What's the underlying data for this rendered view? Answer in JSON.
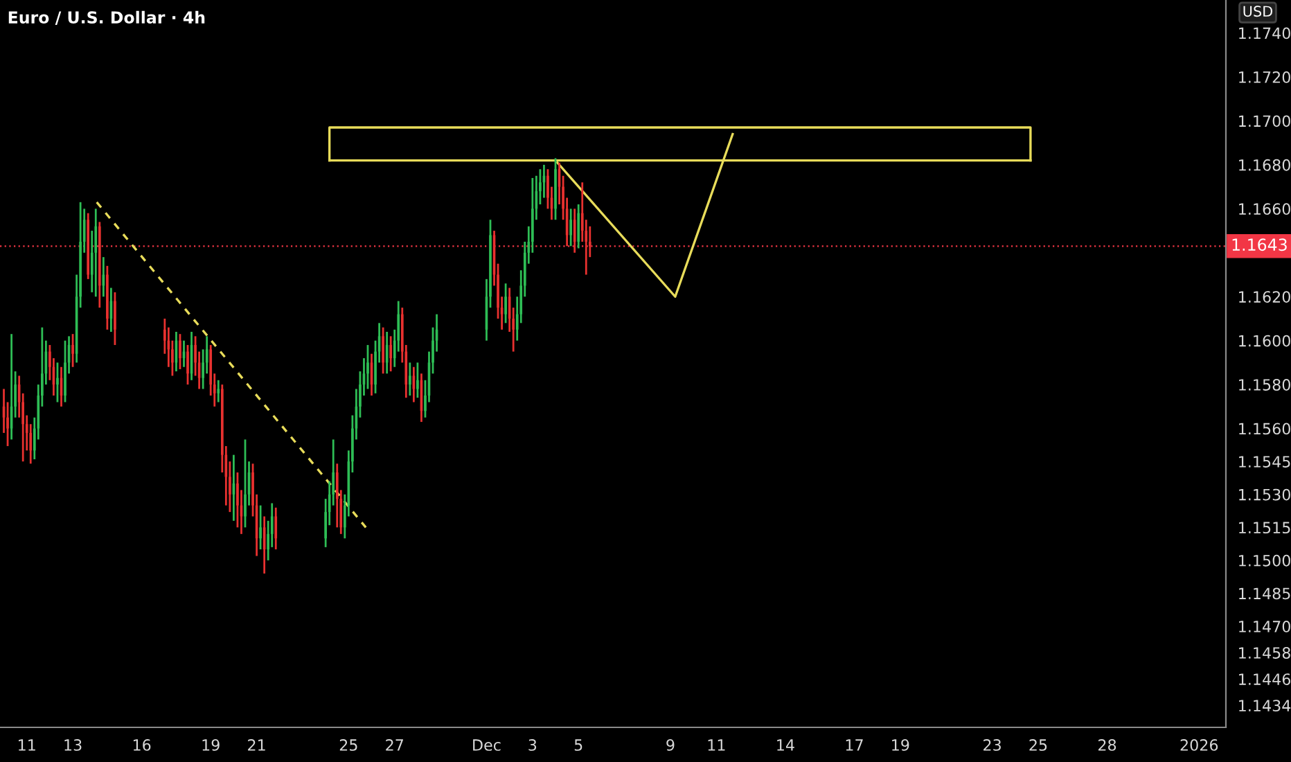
{
  "chart_data": {
    "type": "candlestick",
    "title": "Euro / U.S. Dollar · 4h",
    "ylabel": "USD",
    "x": [
      "2025-11-10T00:00",
      "2025-11-10T04:00",
      "2025-11-10T08:00",
      "2025-11-10T12:00",
      "2025-11-10T16:00",
      "2025-11-10T20:00",
      "2025-11-11T00:00",
      "2025-11-11T04:00",
      "2025-11-11T08:00",
      "2025-11-11T12:00",
      "2025-11-11T16:00",
      "2025-11-11T20:00",
      "2025-11-12T00:00",
      "2025-11-12T04:00",
      "2025-11-12T08:00",
      "2025-11-12T12:00",
      "2025-11-12T16:00",
      "2025-11-12T20:00",
      "2025-11-13T00:00",
      "2025-11-13T04:00",
      "2025-11-13T08:00",
      "2025-11-13T12:00",
      "2025-11-13T16:00",
      "2025-11-13T20:00",
      "2025-11-14T00:00",
      "2025-11-14T04:00",
      "2025-11-14T08:00",
      "2025-11-14T12:00",
      "2025-11-14T16:00",
      "2025-11-14T20:00",
      "2025-11-17T00:00",
      "2025-11-17T04:00",
      "2025-11-17T08:00",
      "2025-11-17T12:00",
      "2025-11-17T16:00",
      "2025-11-17T20:00",
      "2025-11-18T00:00",
      "2025-11-18T04:00",
      "2025-11-18T08:00",
      "2025-11-18T12:00",
      "2025-11-18T16:00",
      "2025-11-18T20:00",
      "2025-11-19T00:00",
      "2025-11-19T04:00",
      "2025-11-19T08:00",
      "2025-11-19T12:00",
      "2025-11-19T16:00",
      "2025-11-19T20:00",
      "2025-11-20T00:00",
      "2025-11-20T04:00",
      "2025-11-20T08:00",
      "2025-11-20T12:00",
      "2025-11-20T16:00",
      "2025-11-20T20:00",
      "2025-11-21T00:00",
      "2025-11-21T04:00",
      "2025-11-21T08:00",
      "2025-11-21T12:00",
      "2025-11-21T16:00",
      "2025-11-21T20:00",
      "2025-11-24T00:00",
      "2025-11-24T04:00",
      "2025-11-24T08:00",
      "2025-11-24T12:00",
      "2025-11-24T16:00",
      "2025-11-24T20:00",
      "2025-11-25T00:00",
      "2025-11-25T04:00",
      "2025-11-25T08:00",
      "2025-11-25T12:00",
      "2025-11-25T16:00",
      "2025-11-25T20:00",
      "2025-11-26T00:00",
      "2025-11-26T04:00",
      "2025-11-26T08:00",
      "2025-11-26T12:00",
      "2025-11-26T16:00",
      "2025-11-26T20:00",
      "2025-11-27T00:00",
      "2025-11-27T04:00",
      "2025-11-27T08:00",
      "2025-11-27T12:00",
      "2025-11-27T16:00",
      "2025-11-27T20:00",
      "2025-11-28T00:00",
      "2025-11-28T04:00",
      "2025-11-28T08:00",
      "2025-11-28T12:00",
      "2025-11-28T16:00",
      "2025-11-28T20:00",
      "2025-12-01T00:00",
      "2025-12-01T04:00",
      "2025-12-01T08:00",
      "2025-12-01T12:00",
      "2025-12-01T16:00",
      "2025-12-01T20:00",
      "2025-12-02T00:00",
      "2025-12-02T04:00",
      "2025-12-02T08:00",
      "2025-12-02T12:00",
      "2025-12-02T16:00",
      "2025-12-02T20:00",
      "2025-12-03T00:00",
      "2025-12-03T04:00",
      "2025-12-03T08:00",
      "2025-12-03T12:00",
      "2025-12-03T16:00",
      "2025-12-03T20:00",
      "2025-12-04T00:00",
      "2025-12-04T04:00",
      "2025-12-04T08:00",
      "2025-12-04T12:00",
      "2025-12-04T16:00",
      "2025-12-04T20:00",
      "2025-12-05T00:00",
      "2025-12-05T04:00",
      "2025-12-05T08:00",
      "2025-12-05T12:00"
    ],
    "ohlc": [
      [
        1.157,
        1.1578,
        1.1558,
        1.1565
      ],
      [
        1.1565,
        1.1572,
        1.1552,
        1.156
      ],
      [
        1.156,
        1.1603,
        1.1555,
        1.157
      ],
      [
        1.157,
        1.1586,
        1.1565,
        1.158
      ],
      [
        1.158,
        1.1584,
        1.1565,
        1.1572
      ],
      [
        1.1572,
        1.1576,
        1.1545,
        1.1562
      ],
      [
        1.1562,
        1.1566,
        1.155,
        1.1558
      ],
      [
        1.1558,
        1.1562,
        1.1544,
        1.155
      ],
      [
        1.155,
        1.1565,
        1.1546,
        1.156
      ],
      [
        1.156,
        1.158,
        1.1555,
        1.1575
      ],
      [
        1.1575,
        1.1606,
        1.157,
        1.1585
      ],
      [
        1.1585,
        1.16,
        1.158,
        1.1595
      ],
      [
        1.1595,
        1.1598,
        1.1582,
        1.1588
      ],
      [
        1.1588,
        1.1592,
        1.1575,
        1.158
      ],
      [
        1.158,
        1.159,
        1.1572,
        1.1583
      ],
      [
        1.1583,
        1.1588,
        1.157,
        1.1575
      ],
      [
        1.1575,
        1.16,
        1.1572,
        1.159
      ],
      [
        1.159,
        1.1602,
        1.1585,
        1.1598
      ],
      [
        1.1598,
        1.1603,
        1.1588,
        1.1594
      ],
      [
        1.1594,
        1.163,
        1.159,
        1.162
      ],
      [
        1.162,
        1.1663,
        1.1615,
        1.1645
      ],
      [
        1.1645,
        1.166,
        1.164,
        1.1655
      ],
      [
        1.1655,
        1.1658,
        1.1628,
        1.163
      ],
      [
        1.163,
        1.165,
        1.1622,
        1.164
      ],
      [
        1.164,
        1.166,
        1.162,
        1.1652
      ],
      [
        1.1652,
        1.1654,
        1.1615,
        1.1625
      ],
      [
        1.1625,
        1.1638,
        1.162,
        1.163
      ],
      [
        1.163,
        1.1634,
        1.1605,
        1.161
      ],
      [
        1.161,
        1.1624,
        1.1604,
        1.1618
      ],
      [
        1.1618,
        1.1622,
        1.1598,
        1.1605
      ],
      [
        1.1605,
        1.161,
        1.1594,
        1.16
      ],
      [
        1.16,
        1.1606,
        1.1588,
        1.1596
      ],
      [
        1.1596,
        1.16,
        1.1584,
        1.159
      ],
      [
        1.159,
        1.1604,
        1.1586,
        1.16
      ],
      [
        1.16,
        1.1603,
        1.1587,
        1.1592
      ],
      [
        1.1592,
        1.16,
        1.1588,
        1.1595
      ],
      [
        1.1595,
        1.1598,
        1.158,
        1.1585
      ],
      [
        1.1585,
        1.1604,
        1.1582,
        1.1598
      ],
      [
        1.1598,
        1.1602,
        1.1584,
        1.159
      ],
      [
        1.159,
        1.1595,
        1.1578,
        1.1583
      ],
      [
        1.1583,
        1.1596,
        1.1578,
        1.159
      ],
      [
        1.159,
        1.1602,
        1.1585,
        1.1596
      ],
      [
        1.1596,
        1.1598,
        1.1575,
        1.158
      ],
      [
        1.158,
        1.1585,
        1.157,
        1.1576
      ],
      [
        1.1576,
        1.1582,
        1.1572,
        1.1578
      ],
      [
        1.1578,
        1.158,
        1.154,
        1.1548
      ],
      [
        1.1548,
        1.1552,
        1.1525,
        1.1538
      ],
      [
        1.1538,
        1.1545,
        1.1522,
        1.153
      ],
      [
        1.153,
        1.1548,
        1.1518,
        1.1535
      ],
      [
        1.1535,
        1.154,
        1.1515,
        1.1525
      ],
      [
        1.1525,
        1.1532,
        1.1512,
        1.152
      ],
      [
        1.152,
        1.1555,
        1.1515,
        1.153
      ],
      [
        1.153,
        1.1545,
        1.1525,
        1.154
      ],
      [
        1.154,
        1.1544,
        1.152,
        1.1525
      ],
      [
        1.1525,
        1.153,
        1.1502,
        1.151
      ],
      [
        1.151,
        1.1525,
        1.1505,
        1.1515
      ],
      [
        1.1515,
        1.152,
        1.1494,
        1.1505
      ],
      [
        1.1505,
        1.1518,
        1.15,
        1.1512
      ],
      [
        1.1512,
        1.1526,
        1.1506,
        1.152
      ],
      [
        1.152,
        1.1524,
        1.1505,
        1.151
      ],
      [
        1.151,
        1.1528,
        1.1506,
        1.1522
      ],
      [
        1.1522,
        1.1536,
        1.1516,
        1.153
      ],
      [
        1.153,
        1.1555,
        1.1525,
        1.154
      ],
      [
        1.154,
        1.1544,
        1.1515,
        1.1528
      ],
      [
        1.1528,
        1.1532,
        1.1512,
        1.1515
      ],
      [
        1.1515,
        1.153,
        1.151,
        1.1525
      ],
      [
        1.1525,
        1.155,
        1.152,
        1.1545
      ],
      [
        1.1545,
        1.1566,
        1.154,
        1.156
      ],
      [
        1.156,
        1.1578,
        1.1555,
        1.157
      ],
      [
        1.157,
        1.1586,
        1.1565,
        1.158
      ],
      [
        1.158,
        1.1592,
        1.1575,
        1.1585
      ],
      [
        1.1585,
        1.1598,
        1.1578,
        1.159
      ],
      [
        1.159,
        1.1594,
        1.1575,
        1.158
      ],
      [
        1.158,
        1.16,
        1.1576,
        1.1595
      ],
      [
        1.1595,
        1.1608,
        1.159,
        1.1602
      ],
      [
        1.1602,
        1.1606,
        1.1585,
        1.159
      ],
      [
        1.159,
        1.1604,
        1.1585,
        1.1598
      ],
      [
        1.1598,
        1.1602,
        1.1586,
        1.1592
      ],
      [
        1.1592,
        1.1605,
        1.1588,
        1.16
      ],
      [
        1.16,
        1.1618,
        1.1595,
        1.1612
      ],
      [
        1.1612,
        1.1615,
        1.159,
        1.1595
      ],
      [
        1.1595,
        1.1598,
        1.1574,
        1.158
      ],
      [
        1.158,
        1.159,
        1.1575,
        1.1584
      ],
      [
        1.1584,
        1.1588,
        1.1572,
        1.1578
      ],
      [
        1.1578,
        1.159,
        1.1574,
        1.1582
      ],
      [
        1.1582,
        1.1585,
        1.1563,
        1.1568
      ],
      [
        1.1568,
        1.1582,
        1.1565,
        1.1575
      ],
      [
        1.1575,
        1.1595,
        1.1572,
        1.159
      ],
      [
        1.159,
        1.1606,
        1.1585,
        1.16
      ],
      [
        1.16,
        1.1612,
        1.1595,
        1.1605
      ],
      [
        1.1605,
        1.1628,
        1.16,
        1.162
      ],
      [
        1.162,
        1.1655,
        1.1615,
        1.1648
      ],
      [
        1.1648,
        1.165,
        1.1625,
        1.163
      ],
      [
        1.163,
        1.1635,
        1.161,
        1.1615
      ],
      [
        1.1615,
        1.162,
        1.1605,
        1.1612
      ],
      [
        1.1612,
        1.1626,
        1.1608,
        1.162
      ],
      [
        1.162,
        1.1624,
        1.1604,
        1.161
      ],
      [
        1.161,
        1.1615,
        1.1595,
        1.1605
      ],
      [
        1.1605,
        1.162,
        1.16,
        1.1612
      ],
      [
        1.1612,
        1.1632,
        1.1608,
        1.1625
      ],
      [
        1.1625,
        1.1645,
        1.162,
        1.164
      ],
      [
        1.164,
        1.1652,
        1.1635,
        1.1645
      ],
      [
        1.1645,
        1.1674,
        1.164,
        1.166
      ],
      [
        1.166,
        1.1675,
        1.1655,
        1.1668
      ],
      [
        1.1668,
        1.1678,
        1.1662,
        1.1672
      ],
      [
        1.1672,
        1.168,
        1.1665,
        1.1675
      ],
      [
        1.1675,
        1.1678,
        1.166,
        1.1665
      ],
      [
        1.1665,
        1.167,
        1.1655,
        1.166
      ],
      [
        1.166,
        1.1683,
        1.1655,
        1.1678
      ],
      [
        1.1678,
        1.1681,
        1.1662,
        1.167
      ],
      [
        1.167,
        1.1675,
        1.1655,
        1.166
      ],
      [
        1.166,
        1.1665,
        1.1643,
        1.1648
      ],
      [
        1.1648,
        1.166,
        1.1643,
        1.1655
      ],
      [
        1.1655,
        1.166,
        1.164,
        1.1645
      ],
      [
        1.1645,
        1.1662,
        1.1642,
        1.1658
      ],
      [
        1.1658,
        1.1672,
        1.1645,
        1.165
      ],
      [
        1.165,
        1.1655,
        1.163,
        1.1645
      ],
      [
        1.1645,
        1.1652,
        1.1638,
        1.1643
      ]
    ],
    "series": [
      {
        "type": "line",
        "color": "#e8dc5a",
        "line_style": "dashed",
        "x": [
          "2025-11-14T01:00",
          "2025-11-25T18:00"
        ],
        "values": [
          1.1663,
          1.1515
        ]
      },
      {
        "type": "line",
        "color": "#e8dc5a",
        "line_style": "solid",
        "x": [
          "2025-12-04T02:00",
          "2025-12-09T05:00",
          "2025-12-11T17:00"
        ],
        "values": [
          1.1681,
          1.162,
          1.1694
        ]
      },
      {
        "type": "line",
        "color": "#e8dc5a",
        "line_style": "solid",
        "x": [
          "2025-11-24T04:00",
          "2025-11-24T04:00",
          "2025-12-24T16:00",
          "2025-12-24T16:00"
        ],
        "values": [
          1.1682,
          1.1697,
          1.1697,
          1.1682
        ]
      },
      {
        "type": "line",
        "color": "#e8dc5a",
        "line_style": "solid",
        "x": [
          "2025-11-24T04:00",
          "2025-12-24T16:00"
        ],
        "values": [
          1.1682,
          1.1682
        ]
      }
    ],
    "ref_lines": [
      {
        "axis": "y",
        "value": 1.1643,
        "label": "1.1643",
        "color": "#f23645",
        "line_style": "dotted"
      }
    ],
    "xlim": [
      "2025-11-09T20:00",
      "2026-01-02T04:00"
    ],
    "ylim": [
      1.1424,
      1.1755
    ],
    "xticks": [
      {
        "value": "2025-11-11",
        "label": "11"
      },
      {
        "value": "2025-11-13",
        "label": "13"
      },
      {
        "value": "2025-11-16",
        "label": "16"
      },
      {
        "value": "2025-11-19",
        "label": "19"
      },
      {
        "value": "2025-11-21",
        "label": "21"
      },
      {
        "value": "2025-11-25",
        "label": "25"
      },
      {
        "value": "2025-11-27",
        "label": "27"
      },
      {
        "value": "2025-12-01",
        "label": "Dec"
      },
      {
        "value": "2025-12-03",
        "label": "3"
      },
      {
        "value": "2025-12-05",
        "label": "5"
      },
      {
        "value": "2025-12-09",
        "label": "9"
      },
      {
        "value": "2025-12-11",
        "label": "11"
      },
      {
        "value": "2025-12-14",
        "label": "14"
      },
      {
        "value": "2025-12-17",
        "label": "17"
      },
      {
        "value": "2025-12-19",
        "label": "19"
      },
      {
        "value": "2025-12-23",
        "label": "23"
      },
      {
        "value": "2025-12-25",
        "label": "25"
      },
      {
        "value": "2025-12-28",
        "label": "28"
      },
      {
        "value": "2026-01-01",
        "label": "2026"
      }
    ],
    "yticks": [
      {
        "value": 1.174,
        "label": "1.1740"
      },
      {
        "value": 1.172,
        "label": "1.1720"
      },
      {
        "value": 1.17,
        "label": "1.1700"
      },
      {
        "value": 1.168,
        "label": "1.1680"
      },
      {
        "value": 1.166,
        "label": "1.1660"
      },
      {
        "value": 1.162,
        "label": "1.1620"
      },
      {
        "value": 1.16,
        "label": "1.1600"
      },
      {
        "value": 1.158,
        "label": "1.1580"
      },
      {
        "value": 1.156,
        "label": "1.1560"
      },
      1.1545,
      {
        "value": 1.153,
        "label": "1.1530"
      },
      1.1515,
      {
        "value": 1.15,
        "label": "1.1500"
      },
      1.1485,
      {
        "value": 1.147,
        "label": "1.1470"
      },
      1.1458,
      1.1446,
      1.1434
    ],
    "grid": false,
    "legend": false
  }
}
